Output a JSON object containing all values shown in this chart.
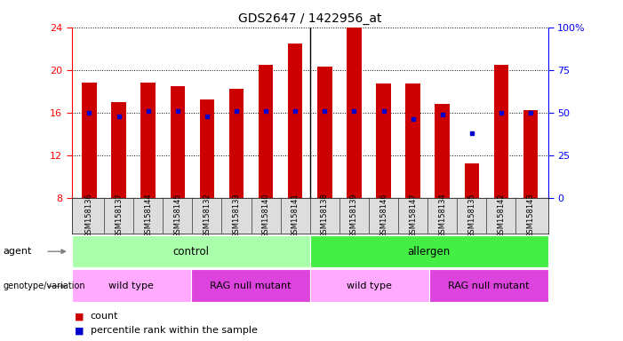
{
  "title": "GDS2647 / 1422956_at",
  "samples": [
    "GSM158136",
    "GSM158137",
    "GSM158144",
    "GSM158145",
    "GSM158132",
    "GSM158133",
    "GSM158140",
    "GSM158141",
    "GSM158138",
    "GSM158139",
    "GSM158146",
    "GSM158147",
    "GSM158134",
    "GSM158135",
    "GSM158142",
    "GSM158143"
  ],
  "counts": [
    18.8,
    17.0,
    18.8,
    18.5,
    17.2,
    18.2,
    20.5,
    22.5,
    20.3,
    24.0,
    18.7,
    18.7,
    16.8,
    11.2,
    20.5,
    16.2
  ],
  "percentile_ranks": [
    50,
    48,
    51,
    51,
    48,
    51,
    51,
    51,
    51,
    51,
    51,
    46,
    49,
    38,
    50,
    50
  ],
  "ymin": 8,
  "ymax": 24,
  "yticks_left": [
    8,
    12,
    16,
    20,
    24
  ],
  "yticks_right": [
    0,
    25,
    50,
    75,
    100
  ],
  "bar_color": "#cc0000",
  "dot_color": "#0000cc",
  "agent_control_color": "#aaffaa",
  "agent_allergen_color": "#44ee44",
  "geno_wt_color": "#ffaaff",
  "geno_rag_color": "#dd44dd",
  "agent_groups": [
    {
      "label": "control",
      "start": 0,
      "end": 8
    },
    {
      "label": "allergen",
      "start": 8,
      "end": 16
    }
  ],
  "genotype_groups": [
    {
      "label": "wild type",
      "start": 0,
      "end": 4
    },
    {
      "label": "RAG null mutant",
      "start": 4,
      "end": 8
    },
    {
      "label": "wild type",
      "start": 8,
      "end": 12
    },
    {
      "label": "RAG null mutant",
      "start": 12,
      "end": 16
    }
  ],
  "legend_count_color": "#cc0000",
  "legend_pct_color": "#0000cc",
  "bar_width": 0.5,
  "tick_bg_color": "#dddddd",
  "separator_color": "#000000"
}
